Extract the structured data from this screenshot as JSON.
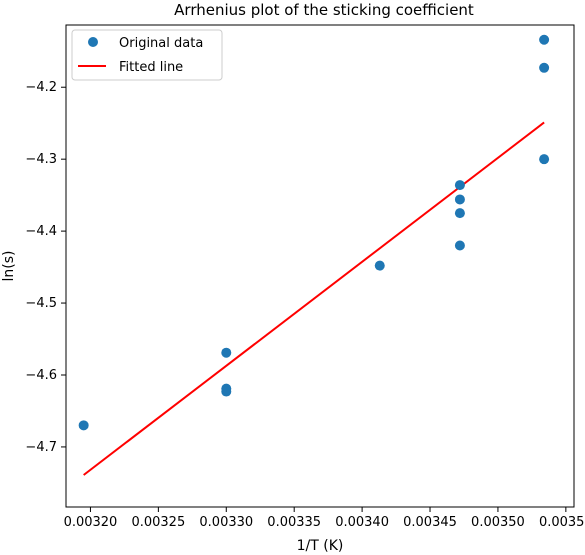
{
  "chart_data": {
    "type": "scatter",
    "title": "Arrhenius plot of the sticking coefficient",
    "xlabel": "1/T (K)",
    "ylabel": "ln(s)",
    "xlim": [
      0.003182,
      0.003556
    ],
    "ylim": [
      -4.7835,
      -4.1135
    ],
    "xticks": [
      0.0032,
      0.00325,
      0.0033,
      0.00335,
      0.0034,
      0.00345,
      0.0035,
      0.00355
    ],
    "xtick_labels": [
      "0.00320",
      "0.00325",
      "0.00330",
      "0.00335",
      "0.00340",
      "0.00345",
      "0.00350",
      "0.00355"
    ],
    "yticks": [
      -4.7,
      -4.6,
      -4.5,
      -4.4,
      -4.3,
      -4.2
    ],
    "ytick_labels": [
      "−4.7",
      "−4.6",
      "−4.5",
      "−4.4",
      "−4.3",
      "−4.2"
    ],
    "grid": false,
    "legend_position": "top-left",
    "series": [
      {
        "name": "Original data",
        "type": "scatter",
        "color": "#1f77b4",
        "points": [
          {
            "x": 0.003195,
            "y": -4.67
          },
          {
            "x": 0.0033,
            "y": -4.569
          },
          {
            "x": 0.0033,
            "y": -4.619
          },
          {
            "x": 0.0033,
            "y": -4.623
          },
          {
            "x": 0.003413,
            "y": -4.448
          },
          {
            "x": 0.003472,
            "y": -4.336
          },
          {
            "x": 0.003472,
            "y": -4.356
          },
          {
            "x": 0.003472,
            "y": -4.375
          },
          {
            "x": 0.003472,
            "y": -4.42
          },
          {
            "x": 0.003534,
            "y": -4.134
          },
          {
            "x": 0.003534,
            "y": -4.173
          },
          {
            "x": 0.003534,
            "y": -4.3
          }
        ]
      },
      {
        "name": "Fitted line",
        "type": "line",
        "color": "#ff0000",
        "points": [
          {
            "x": 0.003195,
            "y": -4.739
          },
          {
            "x": 0.003534,
            "y": -4.249
          }
        ]
      }
    ]
  }
}
